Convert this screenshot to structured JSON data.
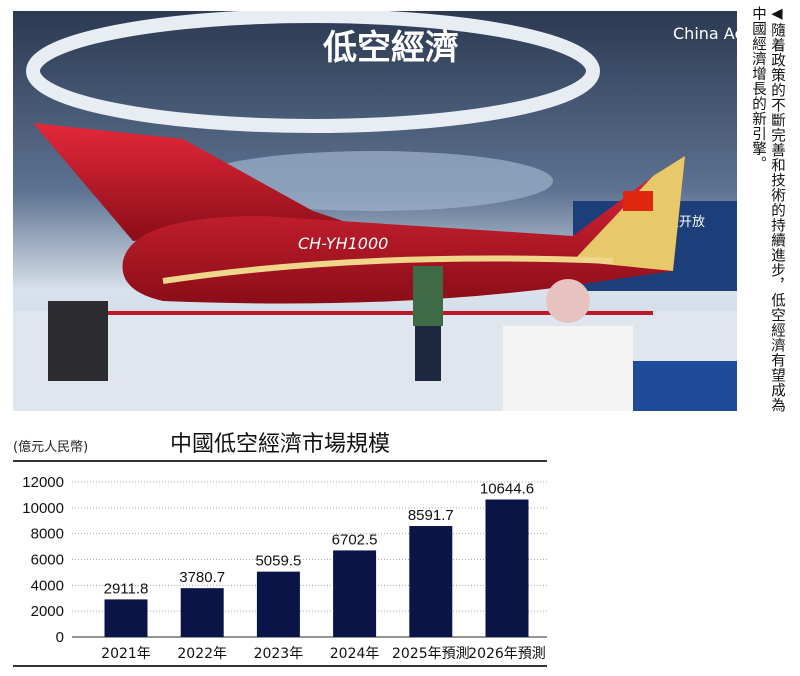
{
  "photo": {
    "sign_text": "低空經濟",
    "plane_registration": "CH-YH1000",
    "background_sign": "China Ae",
    "side_sign": "內陸开放"
  },
  "caption": "◀隨着政策的不斷完善和技術的持續進步，低空經濟有望成為中國經濟增長的新引擎。",
  "chart_data": {
    "type": "bar",
    "title": "中國低空經濟市場規模",
    "unit_label": "(億元人民幣)",
    "categories": [
      "2021年",
      "2022年",
      "2023年",
      "2024年",
      "2025年預測",
      "2026年預測"
    ],
    "values": [
      2911.8,
      3780.7,
      5059.5,
      6702.5,
      8591.7,
      10644.6
    ],
    "value_labels": [
      "2911.8",
      "3780.7",
      "5059.5",
      "6702.5",
      "8591.7",
      "10644.6"
    ],
    "yticks": [
      "0",
      "2000",
      "4000",
      "6000",
      "8000",
      "10000",
      "12000"
    ],
    "ylim": [
      0,
      12000
    ],
    "grid": "horizontal dotted",
    "bar_color": "#0b1446"
  }
}
